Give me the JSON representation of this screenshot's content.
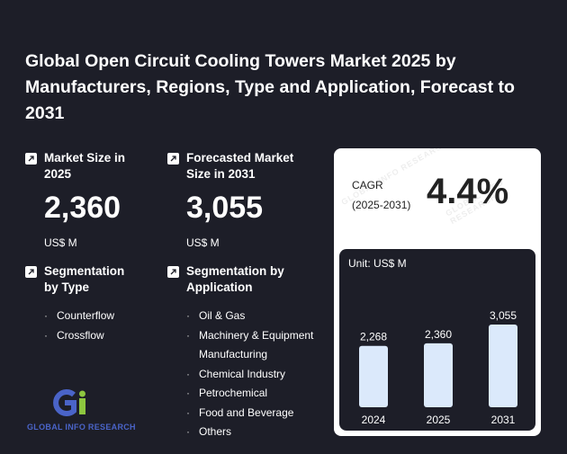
{
  "title": "Global Open Circuit Cooling Towers Market 2025 by Manufacturers, Regions, Type and Application, Forecast to 2031",
  "market_size": {
    "label": "Market Size in 2025",
    "value": "2,360",
    "unit": "US$ M"
  },
  "forecast_size": {
    "label": "Forecasted Market Size in 2031",
    "value": "3,055",
    "unit": "US$ M"
  },
  "seg_type": {
    "label": "Segmentation by Type",
    "items": [
      "Counterflow",
      "Crossflow"
    ]
  },
  "seg_app": {
    "label": "Segmentation by Application",
    "items": [
      "Oil & Gas",
      "Machinery & Equipment Manufacturing",
      "Chemical Industry",
      "Petrochemical",
      "Food and Beverage",
      "Others"
    ]
  },
  "cagr": {
    "label_line1": "CAGR",
    "label_line2": "(2025-2031)",
    "value": "4.4%"
  },
  "logo": {
    "text": "GLOBAL INFO RESEARCH",
    "watermark": "GLOBAL INFO RESEARCH"
  },
  "colors": {
    "background": "#1d1e28",
    "bar": "#dbe9fb",
    "logo_blue": "#4a64c8",
    "logo_green": "#8dc63f"
  },
  "chart_data": {
    "type": "bar",
    "unit_label": "Unit: US$ M",
    "categories": [
      "2024",
      "2025",
      "2031"
    ],
    "values": [
      2268,
      2360,
      3055
    ],
    "value_labels": [
      "2,268",
      "2,360",
      "3,055"
    ],
    "ylim": [
      0,
      3055
    ],
    "grid": false
  }
}
